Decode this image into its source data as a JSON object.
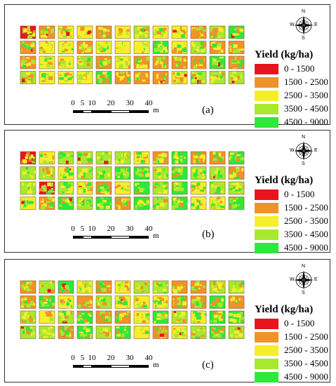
{
  "legend": {
    "title": "Yield (kg/ha)",
    "classes": [
      {
        "label": "0 - 1500",
        "color": "#e8141c"
      },
      {
        "label": "1500 - 2500",
        "color": "#f0922a"
      },
      {
        "label": "2500 - 3500",
        "color": "#f5ee2a"
      },
      {
        "label": "3500 - 4500",
        "color": "#a8e82e"
      },
      {
        "label": "4500 - 9000",
        "color": "#2ee83a"
      }
    ]
  },
  "scale_bar": {
    "ticks": [
      "0",
      "5",
      "10",
      "20",
      "30",
      "40"
    ],
    "unit": "m"
  },
  "compass": {
    "n": "N",
    "s": "S",
    "e": "E",
    "w": "W"
  },
  "panels": [
    {
      "letter": "(a)",
      "tone": "mixed-orange"
    },
    {
      "letter": "(b)",
      "tone": "greener"
    },
    {
      "letter": "(c)",
      "tone": "mixed"
    }
  ]
}
